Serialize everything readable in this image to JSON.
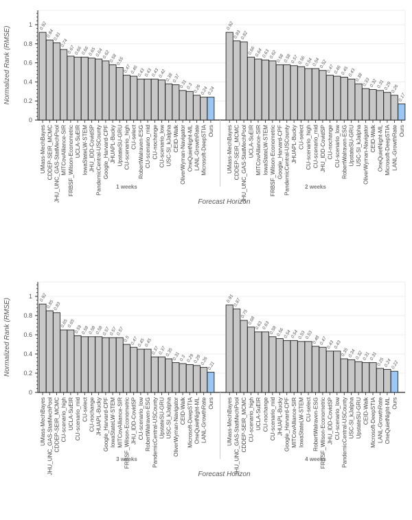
{
  "chart_data": [
    {
      "type": "bar",
      "title": "",
      "ylabel": "Normalized Rank (RMSE)",
      "xlabel": "Forecast Horizon",
      "ylim": [
        0,
        1.15
      ],
      "yticks": [
        "0",
        "0.2",
        "0.4",
        "0.6",
        "0.8",
        "1"
      ],
      "grid": true,
      "facets": [
        {
          "facet_label": "1 weeks",
          "categories": [
            "UMass-MechBayes",
            "CDDEP-SEIR_MCMC",
            "JHU_UNC_GAS-StatMechPool",
            "MITCovAlliance-SIR",
            "FRBSF_Wilson-Econometric",
            "UCLA-SuEIR",
            "IowaStateLW-STEM",
            "JHU_IDD-CovidSP",
            "PandemicCentral-USCounty",
            "Google_Harvard-CPF",
            "JHUAPL-Bucky",
            "UpstateSU-GRU",
            "CU-scenario_high",
            "CU-select",
            "RobertWalraven-ESG",
            "CU-scenario_mid",
            "CU-nochange",
            "CU-scenario_low",
            "USC-SI_kJalpha",
            "CEID-Walk",
            "OliverWyman-Navigator",
            "OneQuietNight-ML",
            "LANL-GrowthRate",
            "Microsoft-DeepSTIA",
            "Ours"
          ],
          "values": [
            0.92,
            0.84,
            0.81,
            0.74,
            0.67,
            0.66,
            0.66,
            0.65,
            0.64,
            0.62,
            0.58,
            0.55,
            0.47,
            0.46,
            0.43,
            0.43,
            0.43,
            0.42,
            0.38,
            0.37,
            0.31,
            0.3,
            0.26,
            0.24,
            0.24
          ]
        },
        {
          "facet_label": "2 weeks",
          "categories": [
            "UMass-MechBayes",
            "CDDEP-SEIR_MCMC",
            "JHU_UNC_GAS-StatMechPool",
            "UCLA-SuEIR",
            "MITCovAlliance-SIR",
            "IowaStateLW-STEM",
            "FRBSF_Wilson-Econometric",
            "Google_Harvard-CPF",
            "PandemicCentral-USCounty",
            "JHUAPL-Bucky",
            "CU-select",
            "CU-scenario_high",
            "CU-scenario_mid",
            "JHU_IDD-CovidSP",
            "CU-nochange",
            "CU-scenario_low",
            "RobertWalraven-ESG",
            "UpstateSU-GRU",
            "USC-SI_kJalpha",
            "OliverWyman-Navigator",
            "CEID-Walk",
            "OneQuietNight-ML",
            "Microsoft-DeepSTIA",
            "LANL-GrowthRate",
            "Ours"
          ],
          "values": [
            0.92,
            0.83,
            0.82,
            0.66,
            0.64,
            0.63,
            0.62,
            0.58,
            0.58,
            0.57,
            0.56,
            0.54,
            0.54,
            0.52,
            0.47,
            0.46,
            0.45,
            0.43,
            0.38,
            0.33,
            0.32,
            0.31,
            0.29,
            0.26,
            0.17
          ]
        }
      ]
    },
    {
      "type": "bar",
      "title": "",
      "ylabel": "Normalized Rank (RMSE)",
      "xlabel": "Forecast Horizon",
      "ylim": [
        0,
        1.15
      ],
      "yticks": [
        "0",
        "0.2",
        "0.4",
        "0.6",
        "0.8",
        "1"
      ],
      "grid": true,
      "facets": [
        {
          "facet_label": "3 weeks",
          "categories": [
            "UMass-MechBayes",
            "JHU_UNC_GAS-StatMechPool",
            "CDDEP-SEIR_MCMC",
            "CU-scenario_high",
            "UCLA-SuEIR",
            "CU-scenario_mid",
            "CU-select",
            "CU-nochange",
            "JHUAPL-Bucky",
            "Google_Harvard-CPF",
            "IowaStateLW-STEM",
            "MITCovAlliance-SIR",
            "FRBSF_Wilson-Econometric",
            "JHU_IDD-CovidSP",
            "CU-scenario_low",
            "RobertWalraven-ESG",
            "PandemicCentral-USCounty",
            "UpstateSU-GRU",
            "USC-SI_kJalpha",
            "OliverWyman-Navigator",
            "CEID-Walk",
            "Microsoft-DeepSTIA",
            "OneQuietNight-ML",
            "LANL-GrowthRate",
            "Ours"
          ],
          "values": [
            0.92,
            0.85,
            0.83,
            0.65,
            0.65,
            0.59,
            0.58,
            0.58,
            0.58,
            0.57,
            0.57,
            0.57,
            0.5,
            0.47,
            0.45,
            0.45,
            0.37,
            0.37,
            0.35,
            0.31,
            0.3,
            0.29,
            0.28,
            0.26,
            0.21
          ]
        },
        {
          "facet_label": "4 weeks",
          "categories": [
            "UMass-MechBayes",
            "JHU_UNC_GAS-StatMechPool",
            "CDDEP-SEIR_MCMC",
            "CU-scenario_high",
            "UCLA-SuEIR",
            "CU-nochange",
            "CU-scenario_mid",
            "JHUAPL-Bucky",
            "Google_Harvard-CPF",
            "MITCovAlliance-SIR",
            "IowaStateLW-STEM",
            "CU-select",
            "RobertWalraven-ESG",
            "FRBSF_Wilson-Econometric",
            "JHU_IDD-CovidSP",
            "CU-scenario_low",
            "PandemicCentral-USCounty",
            "USC-SI_kJalpha",
            "UpstateSU-GRU",
            "CEID-Walk",
            "Microsoft-DeepSTIA",
            "LANL-GrowthRate",
            "OneQuietNight-ML",
            "Ours"
          ],
          "values": [
            0.91,
            0.87,
            0.75,
            0.68,
            0.63,
            0.63,
            0.58,
            0.56,
            0.54,
            0.54,
            0.53,
            0.53,
            0.48,
            0.47,
            0.43,
            0.43,
            0.35,
            0.34,
            0.32,
            0.31,
            0.31,
            0.25,
            0.24,
            0.22
          ]
        }
      ]
    }
  ],
  "colors": {
    "bar_default": "#c8c8c8",
    "bar_highlight": "#9cc7f2",
    "bar_stroke": "#222222",
    "highlight_category": "Ours"
  }
}
